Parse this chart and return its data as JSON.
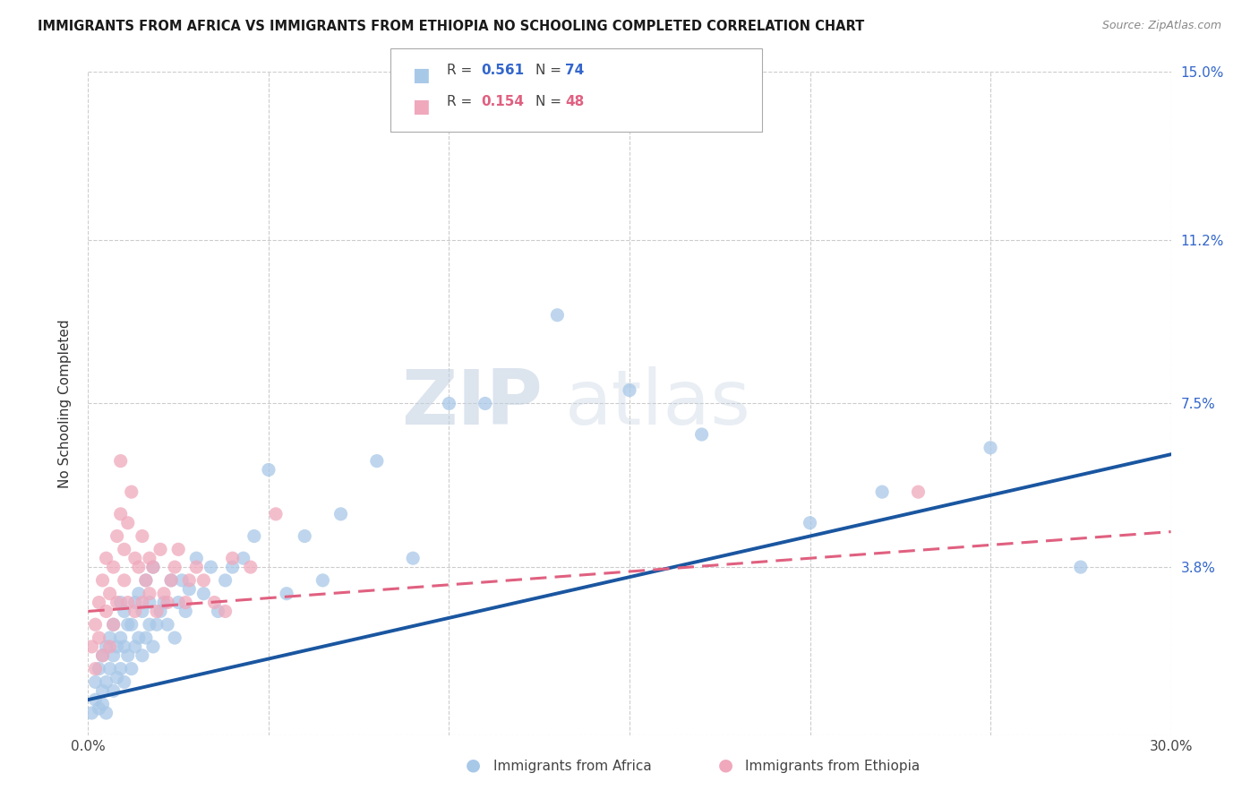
{
  "title": "IMMIGRANTS FROM AFRICA VS IMMIGRANTS FROM ETHIOPIA NO SCHOOLING COMPLETED CORRELATION CHART",
  "source": "Source: ZipAtlas.com",
  "ylabel": "No Schooling Completed",
  "x_min": 0.0,
  "x_max": 0.3,
  "y_min": 0.0,
  "y_max": 0.15,
  "africa_R": 0.561,
  "africa_N": 74,
  "ethiopia_R": 0.154,
  "ethiopia_N": 48,
  "africa_color": "#a8c8e8",
  "ethiopia_color": "#f0a8bc",
  "africa_line_color": "#1a56a0",
  "ethiopia_line_color": "#e06080",
  "legend_africa_label": "Immigrants from Africa",
  "legend_ethiopia_label": "Immigrants from Ethiopia",
  "watermark_zip": "ZIP",
  "watermark_atlas": "atlas",
  "africa_slope": 0.185,
  "africa_intercept": 0.008,
  "ethiopia_slope": 0.06,
  "ethiopia_intercept": 0.028,
  "africa_points_x": [
    0.001,
    0.002,
    0.002,
    0.003,
    0.003,
    0.004,
    0.004,
    0.004,
    0.005,
    0.005,
    0.005,
    0.006,
    0.006,
    0.007,
    0.007,
    0.007,
    0.008,
    0.008,
    0.009,
    0.009,
    0.009,
    0.01,
    0.01,
    0.01,
    0.011,
    0.011,
    0.012,
    0.012,
    0.013,
    0.013,
    0.014,
    0.014,
    0.015,
    0.015,
    0.016,
    0.016,
    0.017,
    0.017,
    0.018,
    0.018,
    0.019,
    0.02,
    0.021,
    0.022,
    0.023,
    0.024,
    0.025,
    0.026,
    0.027,
    0.028,
    0.03,
    0.032,
    0.034,
    0.036,
    0.038,
    0.04,
    0.043,
    0.046,
    0.05,
    0.055,
    0.06,
    0.065,
    0.07,
    0.08,
    0.09,
    0.1,
    0.11,
    0.13,
    0.15,
    0.17,
    0.2,
    0.22,
    0.25,
    0.275
  ],
  "africa_points_y": [
    0.005,
    0.008,
    0.012,
    0.006,
    0.015,
    0.01,
    0.018,
    0.007,
    0.012,
    0.02,
    0.005,
    0.015,
    0.022,
    0.01,
    0.018,
    0.025,
    0.013,
    0.02,
    0.015,
    0.022,
    0.03,
    0.012,
    0.02,
    0.028,
    0.018,
    0.025,
    0.015,
    0.025,
    0.02,
    0.03,
    0.022,
    0.032,
    0.018,
    0.028,
    0.022,
    0.035,
    0.025,
    0.03,
    0.02,
    0.038,
    0.025,
    0.028,
    0.03,
    0.025,
    0.035,
    0.022,
    0.03,
    0.035,
    0.028,
    0.033,
    0.04,
    0.032,
    0.038,
    0.028,
    0.035,
    0.038,
    0.04,
    0.045,
    0.06,
    0.032,
    0.045,
    0.035,
    0.05,
    0.062,
    0.04,
    0.075,
    0.075,
    0.095,
    0.078,
    0.068,
    0.048,
    0.055,
    0.065,
    0.038
  ],
  "ethiopia_points_x": [
    0.001,
    0.002,
    0.002,
    0.003,
    0.003,
    0.004,
    0.004,
    0.005,
    0.005,
    0.006,
    0.006,
    0.007,
    0.007,
    0.008,
    0.008,
    0.009,
    0.009,
    0.01,
    0.01,
    0.011,
    0.011,
    0.012,
    0.013,
    0.013,
    0.014,
    0.015,
    0.015,
    0.016,
    0.017,
    0.017,
    0.018,
    0.019,
    0.02,
    0.021,
    0.022,
    0.023,
    0.024,
    0.025,
    0.027,
    0.028,
    0.03,
    0.032,
    0.035,
    0.038,
    0.04,
    0.045,
    0.052,
    0.23
  ],
  "ethiopia_points_y": [
    0.02,
    0.025,
    0.015,
    0.03,
    0.022,
    0.035,
    0.018,
    0.028,
    0.04,
    0.032,
    0.02,
    0.038,
    0.025,
    0.045,
    0.03,
    0.05,
    0.062,
    0.035,
    0.042,
    0.048,
    0.03,
    0.055,
    0.04,
    0.028,
    0.038,
    0.03,
    0.045,
    0.035,
    0.04,
    0.032,
    0.038,
    0.028,
    0.042,
    0.032,
    0.03,
    0.035,
    0.038,
    0.042,
    0.03,
    0.035,
    0.038,
    0.035,
    0.03,
    0.028,
    0.04,
    0.038,
    0.05,
    0.055
  ]
}
